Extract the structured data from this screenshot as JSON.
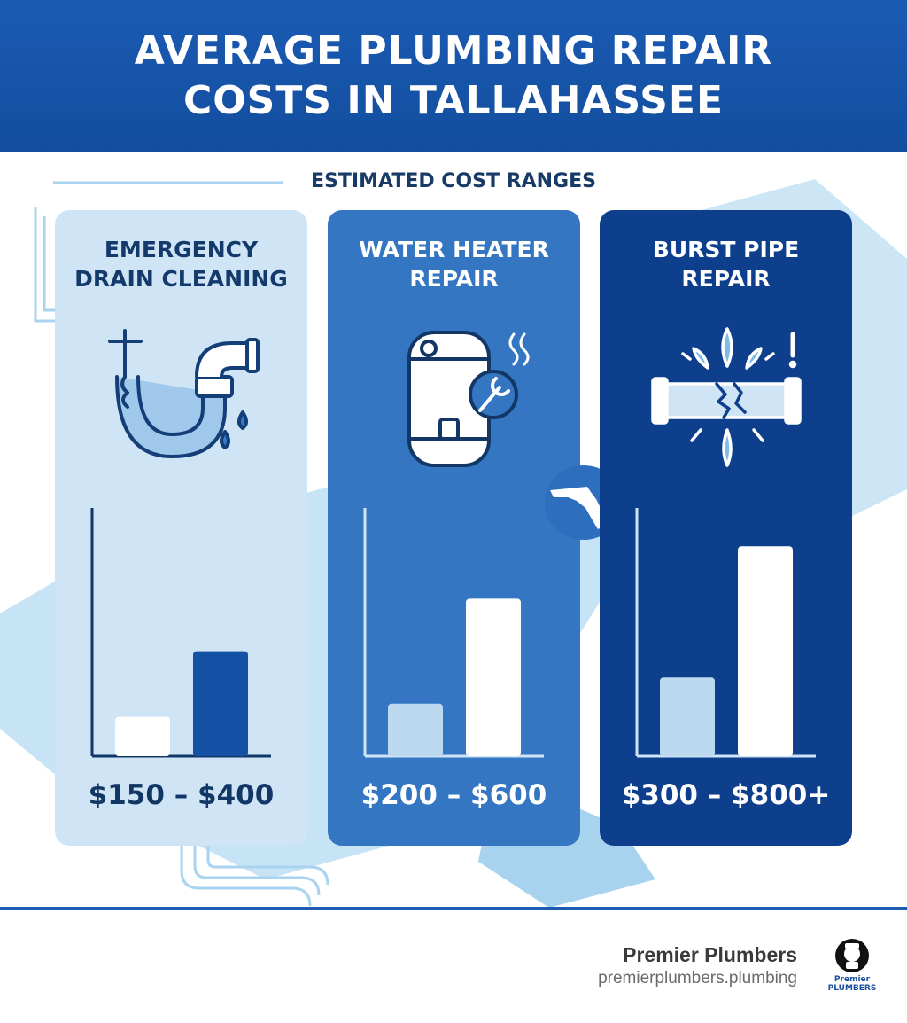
{
  "header": {
    "title_line1": "AVERAGE PLUMBING REPAIR",
    "title_line2": "COSTS IN TALLAHASSEE"
  },
  "subtitle": "ESTIMATED COST RANGES",
  "cards": [
    {
      "title_line1": "EMERGENCY",
      "title_line2": "DRAIN CLEANING",
      "icon": "drain-pipe-icon",
      "price": "$150 – $400"
    },
    {
      "title_line1": "WATER HEATER",
      "title_line2": "REPAIR",
      "icon": "water-heater-icon",
      "price": "$200 – $600"
    },
    {
      "title_line1": "BURST PIPE",
      "title_line2": "REPAIR",
      "icon": "burst-pipe-icon",
      "price": "$300 – $800+"
    }
  ],
  "chart_data": [
    {
      "type": "bar",
      "categories": [
        "low",
        "high"
      ],
      "values": [
        150,
        400
      ],
      "ylim": [
        0,
        1000
      ],
      "grid": false,
      "colors": [
        "#ffffff",
        "#1450a3"
      ]
    },
    {
      "type": "bar",
      "categories": [
        "low",
        "high"
      ],
      "values": [
        200,
        600
      ],
      "ylim": [
        0,
        1000
      ],
      "grid": false,
      "colors": [
        "#bcd9f0",
        "#ffffff"
      ]
    },
    {
      "type": "bar",
      "categories": [
        "low",
        "high"
      ],
      "values": [
        300,
        800
      ],
      "ylim": [
        0,
        1000
      ],
      "grid": false,
      "colors": [
        "#bcd9f0",
        "#ffffff"
      ]
    }
  ],
  "colors": {
    "header_bg": "#1a5bb3",
    "card1_bg": "#cfe4f5",
    "card2_bg": "#3476c2",
    "card3_bg": "#0e3f8c"
  },
  "brand": {
    "name": "Premier Plumbers",
    "url": "premierplumbers.plumbing",
    "logo_line1": "Premier",
    "logo_line2": "PLUMBERS"
  }
}
